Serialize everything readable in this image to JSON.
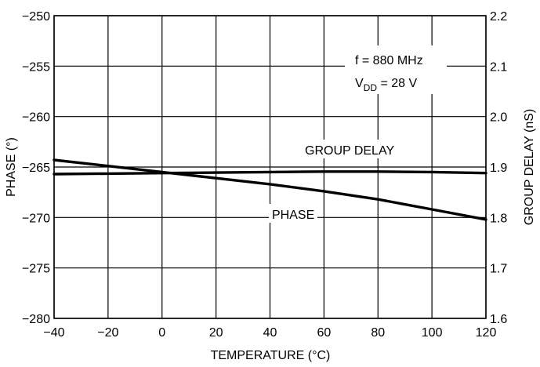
{
  "chart_data": {
    "type": "line",
    "xlabel": "TEMPERATURE (°C)",
    "ylabel": "PHASE (°)",
    "y2label": "GROUP DELAY (nS)",
    "xlim": [
      -40,
      120
    ],
    "ylim": [
      -280,
      -250
    ],
    "y2lim": [
      1.6,
      2.2
    ],
    "grid": true,
    "x_ticks": [
      -40,
      -20,
      0,
      20,
      40,
      60,
      80,
      100,
      120
    ],
    "y_ticks": [
      -250,
      -255,
      -260,
      -265,
      -270,
      -275,
      -280
    ],
    "y2_ticks": [
      2.2,
      2.1,
      2.0,
      1.9,
      1.8,
      1.7,
      1.6
    ],
    "series": [
      {
        "name": "PHASE",
        "axis": "left",
        "x": [
          -40,
          -20,
          0,
          20,
          40,
          60,
          80,
          100,
          120
        ],
        "values": [
          -264.3,
          -264.9,
          -265.5,
          -266.1,
          -266.7,
          -267.4,
          -268.2,
          -269.2,
          -270.2
        ]
      },
      {
        "name": "GROUP DELAY",
        "axis": "right",
        "x": [
          -40,
          -20,
          0,
          20,
          40,
          60,
          80,
          100,
          120
        ],
        "values": [
          1.886,
          1.887,
          1.888,
          1.889,
          1.89,
          1.891,
          1.891,
          1.89,
          1.888
        ]
      }
    ],
    "annotations": {
      "freq": "f = 880 MHz",
      "vdd_prefix": "V",
      "vdd_sub": "DD",
      "vdd_suffix": " = 28 V"
    }
  }
}
